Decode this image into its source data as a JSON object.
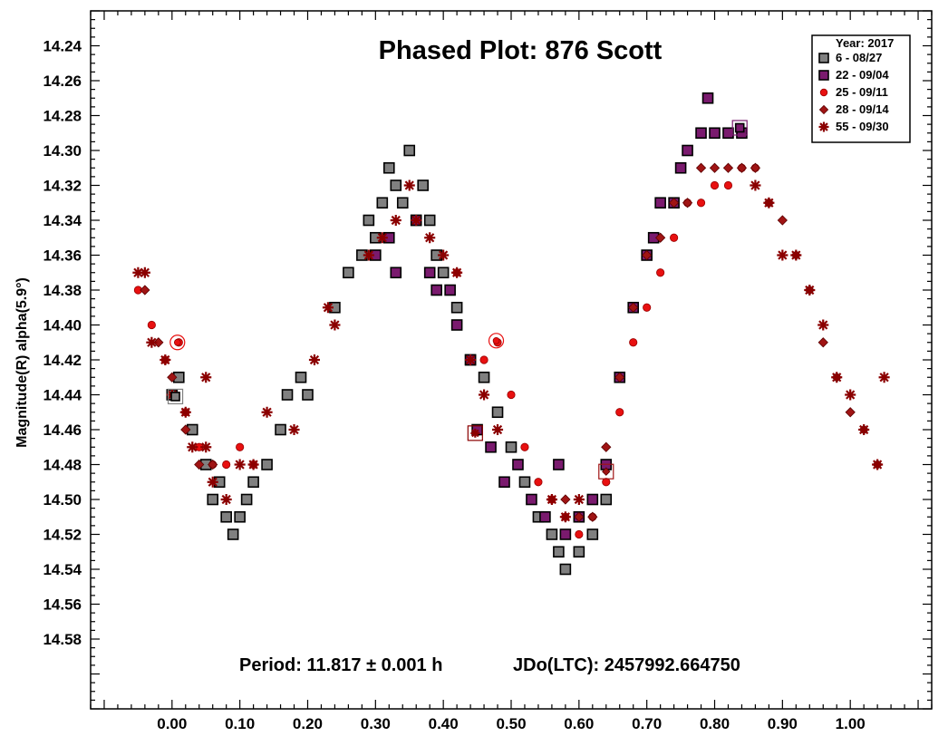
{
  "chart_data": {
    "type": "scatter",
    "title": "Phased Plot: 876 Scott",
    "xlabel": "",
    "ylabel": "Magnitude(R) alpha(5.9°)",
    "xlim": [
      -0.12,
      1.12
    ],
    "ylim": [
      14.22,
      14.62
    ],
    "y_inverted": true,
    "x_ticks": [
      0.0,
      0.1,
      0.2,
      0.3,
      0.4,
      0.5,
      0.6,
      0.7,
      0.8,
      0.9,
      1.0
    ],
    "x_tick_labels": [
      "0.00",
      "0.10",
      "0.20",
      "0.30",
      "0.40",
      "0.50",
      "0.60",
      "0.70",
      "0.80",
      "0.90",
      "1.00"
    ],
    "y_ticks": [
      14.24,
      14.26,
      14.28,
      14.3,
      14.32,
      14.34,
      14.36,
      14.38,
      14.4,
      14.42,
      14.44,
      14.46,
      14.48,
      14.5,
      14.52,
      14.54,
      14.56,
      14.58
    ],
    "y_tick_labels": [
      "14.24",
      "14.26",
      "14.28",
      "14.30",
      "14.32",
      "14.34",
      "14.36",
      "14.38",
      "14.40",
      "14.42",
      "14.44",
      "14.46",
      "14.48",
      "14.50",
      "14.52",
      "14.54",
      "14.56",
      "14.58"
    ],
    "grid": false,
    "legend": {
      "title": "Year: 2017",
      "position": "top-right"
    },
    "annotations": {
      "period": "Period: 11.817 ± 0.001 h",
      "jd": "JDo(LTC): 2457992.664750"
    },
    "series": [
      {
        "name": "6 - 08/27",
        "marker": "square",
        "color": "#808080",
        "points": [
          [
            0.0,
            14.44
          ],
          [
            0.01,
            14.43
          ],
          [
            0.03,
            14.46
          ],
          [
            0.05,
            14.48
          ],
          [
            0.06,
            14.5
          ],
          [
            0.07,
            14.49
          ],
          [
            0.08,
            14.51
          ],
          [
            0.09,
            14.52
          ],
          [
            0.1,
            14.51
          ],
          [
            0.11,
            14.5
          ],
          [
            0.12,
            14.49
          ],
          [
            0.14,
            14.48
          ],
          [
            0.16,
            14.46
          ],
          [
            0.17,
            14.44
          ],
          [
            0.19,
            14.43
          ],
          [
            0.2,
            14.44
          ],
          [
            0.24,
            14.39
          ],
          [
            0.26,
            14.37
          ],
          [
            0.28,
            14.36
          ],
          [
            0.29,
            14.34
          ],
          [
            0.3,
            14.35
          ],
          [
            0.31,
            14.33
          ],
          [
            0.32,
            14.31
          ],
          [
            0.33,
            14.32
          ],
          [
            0.34,
            14.33
          ],
          [
            0.35,
            14.3
          ],
          [
            0.36,
            14.34
          ],
          [
            0.37,
            14.32
          ],
          [
            0.38,
            14.34
          ],
          [
            0.39,
            14.36
          ],
          [
            0.4,
            14.37
          ],
          [
            0.42,
            14.39
          ],
          [
            0.44,
            14.42
          ],
          [
            0.46,
            14.43
          ],
          [
            0.48,
            14.45
          ],
          [
            0.5,
            14.47
          ],
          [
            0.52,
            14.49
          ],
          [
            0.54,
            14.51
          ],
          [
            0.56,
            14.52
          ],
          [
            0.57,
            14.53
          ],
          [
            0.58,
            14.54
          ],
          [
            0.6,
            14.53
          ],
          [
            0.62,
            14.52
          ],
          [
            0.64,
            14.5
          ]
        ]
      },
      {
        "name": "22 - 09/04",
        "marker": "square",
        "color": "#7a1a6e",
        "points": [
          [
            0.3,
            14.36
          ],
          [
            0.32,
            14.35
          ],
          [
            0.33,
            14.37
          ],
          [
            0.36,
            14.34
          ],
          [
            0.38,
            14.37
          ],
          [
            0.39,
            14.38
          ],
          [
            0.41,
            14.38
          ],
          [
            0.42,
            14.4
          ],
          [
            0.44,
            14.42
          ],
          [
            0.45,
            14.46
          ],
          [
            0.47,
            14.47
          ],
          [
            0.49,
            14.49
          ],
          [
            0.51,
            14.48
          ],
          [
            0.53,
            14.5
          ],
          [
            0.55,
            14.51
          ],
          [
            0.57,
            14.48
          ],
          [
            0.58,
            14.52
          ],
          [
            0.6,
            14.51
          ],
          [
            0.62,
            14.5
          ],
          [
            0.64,
            14.48
          ],
          [
            0.66,
            14.43
          ],
          [
            0.68,
            14.39
          ],
          [
            0.7,
            14.36
          ],
          [
            0.71,
            14.35
          ],
          [
            0.72,
            14.33
          ],
          [
            0.74,
            14.33
          ],
          [
            0.75,
            14.31
          ],
          [
            0.76,
            14.3
          ],
          [
            0.78,
            14.29
          ],
          [
            0.79,
            14.27
          ],
          [
            0.8,
            14.29
          ],
          [
            0.82,
            14.29
          ],
          [
            0.84,
            14.29
          ]
        ]
      },
      {
        "name": "25 - 09/11",
        "marker": "circle",
        "color": "#e81010",
        "points": [
          [
            -0.05,
            14.38
          ],
          [
            -0.03,
            14.4
          ],
          [
            -0.01,
            14.42
          ],
          [
            0.01,
            14.41
          ],
          [
            0.02,
            14.45
          ],
          [
            0.04,
            14.47
          ],
          [
            0.06,
            14.48
          ],
          [
            0.08,
            14.48
          ],
          [
            0.1,
            14.47
          ],
          [
            0.12,
            14.48
          ],
          [
            0.42,
            14.37
          ],
          [
            0.46,
            14.42
          ],
          [
            0.48,
            14.41
          ],
          [
            0.5,
            14.44
          ],
          [
            0.52,
            14.47
          ],
          [
            0.54,
            14.49
          ],
          [
            0.56,
            14.5
          ],
          [
            0.58,
            14.51
          ],
          [
            0.6,
            14.52
          ],
          [
            0.62,
            14.51
          ],
          [
            0.64,
            14.49
          ],
          [
            0.66,
            14.45
          ],
          [
            0.68,
            14.41
          ],
          [
            0.7,
            14.39
          ],
          [
            0.72,
            14.37
          ],
          [
            0.74,
            14.35
          ],
          [
            0.76,
            14.33
          ],
          [
            0.78,
            14.33
          ],
          [
            0.8,
            14.32
          ],
          [
            0.82,
            14.32
          ],
          [
            0.84,
            14.31
          ],
          [
            0.86,
            14.31
          ],
          [
            0.88,
            14.33
          ]
        ]
      },
      {
        "name": "28 - 09/14",
        "marker": "diamond",
        "color": "#a01414",
        "points": [
          [
            -0.04,
            14.38
          ],
          [
            -0.02,
            14.41
          ],
          [
            0.0,
            14.43
          ],
          [
            0.02,
            14.46
          ],
          [
            0.04,
            14.48
          ],
          [
            0.06,
            14.48
          ],
          [
            0.58,
            14.5
          ],
          [
            0.6,
            14.51
          ],
          [
            0.62,
            14.51
          ],
          [
            0.64,
            14.47
          ],
          [
            0.66,
            14.43
          ],
          [
            0.68,
            14.39
          ],
          [
            0.7,
            14.36
          ],
          [
            0.72,
            14.35
          ],
          [
            0.74,
            14.33
          ],
          [
            0.76,
            14.33
          ],
          [
            0.78,
            14.31
          ],
          [
            0.8,
            14.31
          ],
          [
            0.82,
            14.31
          ],
          [
            0.84,
            14.31
          ],
          [
            0.86,
            14.31
          ],
          [
            0.88,
            14.33
          ],
          [
            0.9,
            14.34
          ],
          [
            0.92,
            14.36
          ],
          [
            0.94,
            14.38
          ],
          [
            0.96,
            14.41
          ],
          [
            0.98,
            14.43
          ],
          [
            1.0,
            14.45
          ],
          [
            1.02,
            14.46
          ],
          [
            1.04,
            14.48
          ]
        ]
      },
      {
        "name": "55 - 09/30",
        "marker": "asterisk",
        "color": "#8b0000",
        "points": [
          [
            -0.05,
            14.37
          ],
          [
            -0.04,
            14.37
          ],
          [
            -0.03,
            14.41
          ],
          [
            -0.01,
            14.42
          ],
          [
            0.0,
            14.44
          ],
          [
            0.02,
            14.45
          ],
          [
            0.03,
            14.47
          ],
          [
            0.05,
            14.43
          ],
          [
            0.05,
            14.47
          ],
          [
            0.06,
            14.49
          ],
          [
            0.08,
            14.5
          ],
          [
            0.1,
            14.48
          ],
          [
            0.12,
            14.48
          ],
          [
            0.14,
            14.45
          ],
          [
            0.18,
            14.46
          ],
          [
            0.21,
            14.42
          ],
          [
            0.23,
            14.39
          ],
          [
            0.24,
            14.4
          ],
          [
            0.29,
            14.36
          ],
          [
            0.31,
            14.35
          ],
          [
            0.33,
            14.34
          ],
          [
            0.35,
            14.32
          ],
          [
            0.36,
            14.34
          ],
          [
            0.38,
            14.35
          ],
          [
            0.4,
            14.36
          ],
          [
            0.42,
            14.37
          ],
          [
            0.44,
            14.42
          ],
          [
            0.46,
            14.44
          ],
          [
            0.48,
            14.46
          ],
          [
            0.56,
            14.5
          ],
          [
            0.58,
            14.51
          ],
          [
            0.6,
            14.5
          ],
          [
            0.86,
            14.32
          ],
          [
            0.88,
            14.33
          ],
          [
            0.9,
            14.36
          ],
          [
            0.92,
            14.36
          ],
          [
            0.94,
            14.38
          ],
          [
            0.96,
            14.4
          ],
          [
            0.98,
            14.43
          ],
          [
            1.0,
            14.44
          ],
          [
            1.02,
            14.46
          ],
          [
            1.04,
            14.48
          ],
          [
            1.05,
            14.43
          ]
        ]
      }
    ],
    "highlighted": [
      {
        "series": 0,
        "x": 0.005,
        "y": 14.441
      },
      {
        "series": 1,
        "x": 0.837,
        "y": 14.287
      },
      {
        "series": 2,
        "x": 0.478,
        "y": 14.409
      },
      {
        "series": 2,
        "x": 0.008,
        "y": 14.41
      },
      {
        "series": 3,
        "x": 0.64,
        "y": 14.484
      },
      {
        "series": 4,
        "x": 0.447,
        "y": 14.462
      }
    ]
  }
}
